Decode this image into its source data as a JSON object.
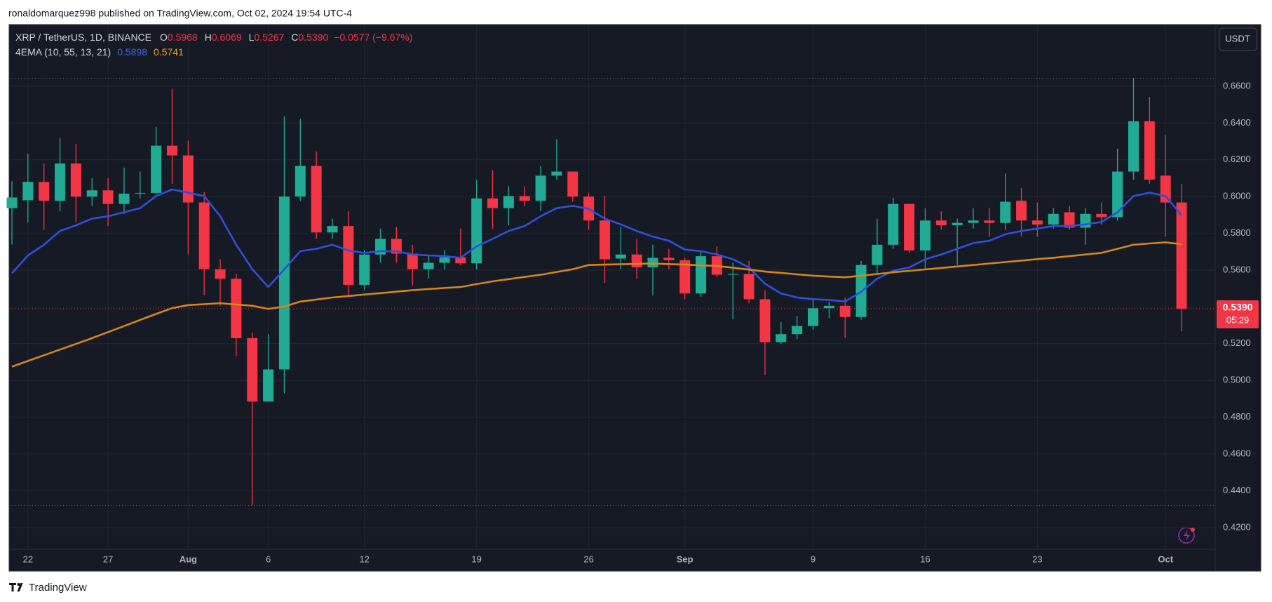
{
  "header": {
    "published": "ronaldomarquez998 published on TradingView.com, Oct 02, 2024 19:54 UTC-4",
    "brand": "TradingView"
  },
  "chart_data": {
    "type": "candlestick",
    "title": "XRP / TetherUS, 1D, BINANCE",
    "legend": {
      "ohlc": [
        {
          "key": "O",
          "label": "0.5968"
        },
        {
          "key": "H",
          "label": "0.6069"
        },
        {
          "key": "L",
          "label": "0.5267"
        },
        {
          "key": "C",
          "label": "0.5390"
        }
      ],
      "change": "−0.0577 (−9.67%)"
    },
    "currency": "USDT",
    "categories": [
      null,
      "22",
      null,
      null,
      null,
      null,
      "27",
      null,
      null,
      null,
      null,
      "Aug",
      null,
      null,
      null,
      null,
      "6",
      null,
      null,
      null,
      null,
      null,
      "12",
      null,
      null,
      null,
      null,
      null,
      null,
      "19",
      null,
      null,
      null,
      null,
      null,
      null,
      "26",
      null,
      null,
      null,
      null,
      null,
      "Sep",
      null,
      null,
      null,
      null,
      null,
      null,
      null,
      "9",
      null,
      null,
      null,
      null,
      null,
      null,
      "16",
      null,
      null,
      null,
      null,
      null,
      null,
      "23",
      null,
      null,
      null,
      null,
      null,
      null,
      null,
      "Oct",
      null
    ],
    "open": [
      0.5937,
      0.598,
      0.608,
      0.5977,
      0.618,
      0.6,
      0.6034,
      0.596,
      0.6016,
      0.602,
      0.6277,
      0.6224,
      0.5968,
      0.5605,
      0.5553,
      0.523,
      0.4885,
      0.506,
      0.6,
      0.6167,
      0.5805,
      0.584,
      0.552,
      0.5685,
      0.577,
      0.569,
      0.5605,
      0.564,
      0.567,
      0.5637,
      0.599,
      0.5937,
      0.6003,
      0.5977,
      0.6114,
      0.6136,
      0.6,
      0.587,
      0.5663,
      0.5685,
      0.5615,
      0.5667,
      0.5654,
      0.5473,
      0.5676,
      0.5575,
      0.5579,
      0.5442,
      0.5208,
      0.5252,
      0.5296,
      0.5393,
      0.5406,
      0.5345,
      0.5628,
      0.5738,
      0.596,
      0.5707,
      0.587,
      0.5844,
      0.5857,
      0.587,
      0.5857,
      0.5977,
      0.587,
      0.5848,
      0.5915,
      0.5831,
      0.5906,
      0.5888,
      0.6136,
      0.641,
      0.6114,
      0.5968
    ],
    "high": [
      0.6083,
      0.6233,
      0.618,
      0.632,
      0.6286,
      0.61,
      0.61,
      0.6158,
      0.6136,
      0.638,
      0.6587,
      0.6304,
      0.6025,
      0.5659,
      0.558,
      0.526,
      0.5252,
      0.6436,
      0.6423,
      0.6246,
      0.588,
      0.592,
      0.571,
      0.5826,
      0.5835,
      0.5738,
      0.568,
      0.571,
      0.5826,
      0.6092,
      0.6145,
      0.6056,
      0.6056,
      0.6167,
      0.6313,
      0.6136,
      0.6021,
      0.6003,
      0.5835,
      0.577,
      0.5738,
      0.5716,
      0.5667,
      0.5703,
      0.573,
      0.564,
      0.565,
      0.549,
      0.5318,
      0.535,
      0.5446,
      0.5429,
      0.545,
      0.565,
      0.588,
      0.5994,
      0.596,
      0.5937,
      0.592,
      0.588,
      0.5937,
      0.5937,
      0.6127,
      0.6047,
      0.5968,
      0.5937,
      0.595,
      0.5937,
      0.5968,
      0.626,
      0.6644,
      0.6543,
      0.6335,
      0.6069
    ],
    "low": [
      0.574,
      0.586,
      0.582,
      0.592,
      0.586,
      0.595,
      0.584,
      0.5906,
      0.599,
      0.601,
      0.607,
      0.5685,
      0.5464,
      0.5406,
      0.5133,
      0.432,
      0.4907,
      0.493,
      0.5977,
      0.577,
      0.577,
      0.5464,
      0.549,
      0.564,
      0.564,
      0.5517,
      0.5553,
      0.5605,
      0.5627,
      0.5605,
      0.5826,
      0.5844,
      0.5946,
      0.592,
      0.6092,
      0.5972,
      0.582,
      0.553,
      0.5605,
      0.5553,
      0.5464,
      0.5605,
      0.5442,
      0.5455,
      0.5562,
      0.5332,
      0.542,
      0.503,
      0.5199,
      0.5225,
      0.5274,
      0.534,
      0.523,
      0.533,
      0.5583,
      0.5716,
      0.5694,
      0.5605,
      0.582,
      0.5627,
      0.5826,
      0.5782,
      0.582,
      0.5782,
      0.5782,
      0.5826,
      0.582,
      0.5738,
      0.5848,
      0.587,
      0.6092,
      0.607,
      0.5782,
      0.5267
    ],
    "close": [
      0.5995,
      0.608,
      0.5977,
      0.618,
      0.6,
      0.6034,
      0.596,
      0.6016,
      0.602,
      0.6277,
      0.6224,
      0.5968,
      0.5605,
      0.5553,
      0.523,
      0.4885,
      0.506,
      0.6,
      0.6167,
      0.5805,
      0.584,
      0.552,
      0.5685,
      0.577,
      0.569,
      0.5605,
      0.564,
      0.567,
      0.5637,
      0.599,
      0.5937,
      0.6003,
      0.5977,
      0.6114,
      0.6136,
      0.6,
      0.587,
      0.5659,
      0.5685,
      0.5615,
      0.5667,
      0.5654,
      0.5473,
      0.5676,
      0.5575,
      0.5579,
      0.5442,
      0.5208,
      0.5252,
      0.5296,
      0.5393,
      0.5406,
      0.5345,
      0.5628,
      0.5738,
      0.596,
      0.5707,
      0.587,
      0.5844,
      0.5857,
      0.587,
      0.5857,
      0.5972,
      0.587,
      0.5848,
      0.5906,
      0.5831,
      0.5906,
      0.5888,
      0.6136,
      0.641,
      0.6092,
      0.5968,
      0.539
    ],
    "up_color": "#22ab94",
    "down_color": "#f23645",
    "indicator": {
      "name": "4EMA (10, 55, 13, 21)",
      "lines": [
        {
          "color": "#2e50dc",
          "values": [
            0.5583,
            0.568,
            0.5738,
            0.5813,
            0.5844,
            0.588,
            0.5893,
            0.5915,
            0.5937,
            0.6003,
            0.6039,
            0.6021,
            0.6003,
            0.5893,
            0.5738,
            0.5605,
            0.5508,
            0.5605,
            0.5703,
            0.5716,
            0.5738,
            0.5707,
            0.5694,
            0.5703,
            0.5703,
            0.5685,
            0.568,
            0.5676,
            0.5667,
            0.5729,
            0.577,
            0.5813,
            0.584,
            0.5893,
            0.5937,
            0.595,
            0.5933,
            0.588,
            0.5849,
            0.5813,
            0.5782,
            0.576,
            0.5712,
            0.5703,
            0.5685,
            0.5659,
            0.5614,
            0.5526,
            0.5473,
            0.5451,
            0.5442,
            0.5438,
            0.5429,
            0.5482,
            0.5553,
            0.5597,
            0.5614,
            0.5659,
            0.5685,
            0.5716,
            0.5747,
            0.576,
            0.5795,
            0.5813,
            0.5826,
            0.584,
            0.584,
            0.5849,
            0.5862,
            0.5915,
            0.6003,
            0.6021,
            0.6003,
            0.5898
          ]
        },
        {
          "color": "#d4861c",
          "values": [
            0.5075,
            0.5106,
            0.5137,
            0.5168,
            0.5199,
            0.523,
            0.5263,
            0.5296,
            0.5329,
            0.5362,
            0.5393,
            0.541,
            0.5415,
            0.542,
            0.5413,
            0.5406,
            0.5389,
            0.5402,
            0.5429,
            0.544,
            0.5451,
            0.5459,
            0.5467,
            0.5475,
            0.5483,
            0.5491,
            0.5497,
            0.5503,
            0.5508,
            0.5524,
            0.5539,
            0.5551,
            0.5563,
            0.5575,
            0.559,
            0.5605,
            0.5628,
            0.563,
            0.5632,
            0.5634,
            0.5636,
            0.5633,
            0.563,
            0.5626,
            0.5623,
            0.5613,
            0.5603,
            0.5592,
            0.5585,
            0.5577,
            0.557,
            0.5565,
            0.5561,
            0.557,
            0.5579,
            0.5588,
            0.5596,
            0.5604,
            0.5612,
            0.562,
            0.5628,
            0.5636,
            0.5644,
            0.5652,
            0.566,
            0.5667,
            0.5676,
            0.5685,
            0.5694,
            0.5716,
            0.5738,
            0.5745,
            0.5751,
            0.5741
          ]
        }
      ]
    },
    "price_label": {
      "label": "0.5390",
      "countdown": "05:29"
    },
    "ylim": [
      0.4081,
      0.6932
    ],
    "yticks": [
      {
        "value": 0.42,
        "label": "0.4200"
      },
      {
        "value": 0.44,
        "label": "0.4400"
      },
      {
        "value": 0.46,
        "label": "0.4600"
      },
      {
        "value": 0.48,
        "label": "0.4800"
      },
      {
        "value": 0.5,
        "label": "0.5000"
      },
      {
        "value": 0.52,
        "label": "0.5200"
      },
      {
        "value": 0.54,
        "label": "0.5400"
      },
      {
        "value": 0.56,
        "label": "0.5600"
      },
      {
        "value": 0.58,
        "label": "0.5800"
      },
      {
        "value": 0.6,
        "label": "0.6000"
      },
      {
        "value": 0.62,
        "label": "0.6200"
      },
      {
        "value": 0.64,
        "label": "0.6400"
      },
      {
        "value": 0.66,
        "label": "0.6600"
      }
    ],
    "grid": true
  }
}
